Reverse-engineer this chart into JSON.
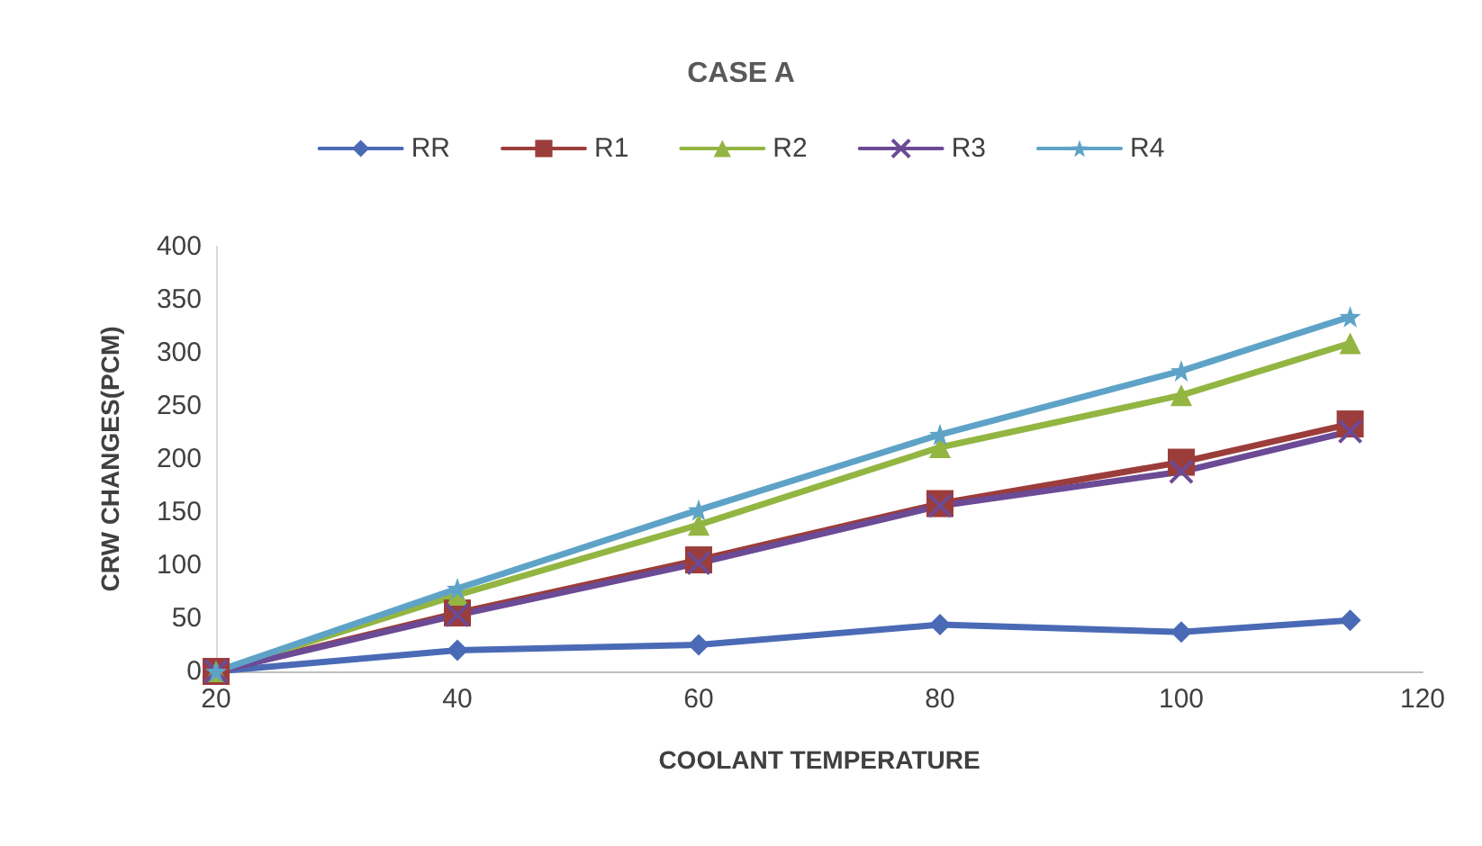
{
  "chart_data": {
    "type": "line",
    "title": "CASE A",
    "xlabel": "COOLANT TEMPERATURE",
    "ylabel": "CRW CHANGES(PCM)",
    "x": [
      20,
      40,
      60,
      80,
      100,
      114
    ],
    "series": [
      {
        "name": "RR",
        "color": "#4a6ab5",
        "marker": "diamond",
        "values": [
          0,
          20,
          25,
          44,
          37,
          48
        ]
      },
      {
        "name": "R1",
        "color": "#9b3d3a",
        "marker": "square",
        "values": [
          0,
          55,
          105,
          158,
          197,
          233
        ]
      },
      {
        "name": "R2",
        "color": "#93b542",
        "marker": "triangle",
        "values": [
          0,
          72,
          138,
          211,
          260,
          309
        ]
      },
      {
        "name": "R3",
        "color": "#6b4a96",
        "marker": "cross",
        "values": [
          0,
          53,
          102,
          156,
          188,
          226
        ]
      },
      {
        "name": "R4",
        "color": "#5ea3c7",
        "marker": "star",
        "values": [
          0,
          78,
          152,
          223,
          283,
          334
        ]
      }
    ],
    "xlim": [
      20,
      120
    ],
    "xticks": [
      20,
      40,
      60,
      80,
      100,
      120
    ],
    "ylim": [
      0,
      400
    ],
    "yticks": [
      0,
      50,
      100,
      150,
      200,
      250,
      300,
      350,
      400
    ],
    "grid": false,
    "legend": "top",
    "line_style": "solid"
  }
}
